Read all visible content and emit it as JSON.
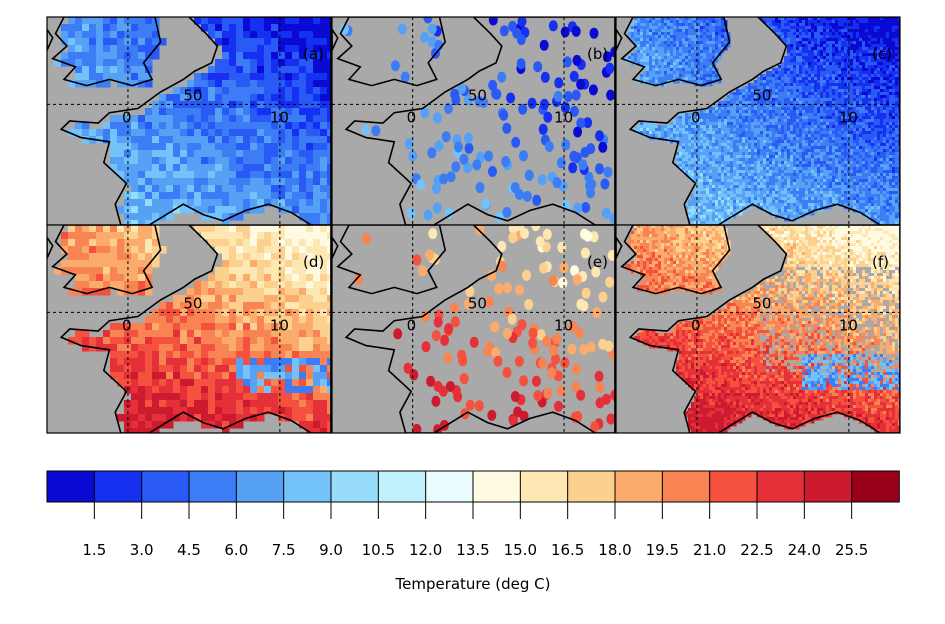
{
  "colors": {
    "land_mask": "#a9a9a9",
    "coast": "#000000",
    "scale": [
      "#0a0ad2",
      "#1530f0",
      "#2a5af5",
      "#3c7cf5",
      "#56a0f5",
      "#74c2fa",
      "#98dcfc",
      "#bff0fc",
      "#e9fbfc",
      "#fffbe2",
      "#fde8b4",
      "#fcd190",
      "#fbac6c",
      "#f78452",
      "#f4513f",
      "#e5303a",
      "#cc1a2e",
      "#9a0018"
    ]
  },
  "panels": [
    {
      "label": "(a)",
      "type": "field",
      "palette": "cold"
    },
    {
      "label": "(b)",
      "type": "stations",
      "palette": "cold"
    },
    {
      "label": "(c)",
      "type": "field_fine",
      "palette": "cold"
    },
    {
      "label": "(d)",
      "type": "field",
      "palette": "warm"
    },
    {
      "label": "(e)",
      "type": "stations",
      "palette": "warm"
    },
    {
      "label": "(f)",
      "type": "field_fine",
      "palette": "warm"
    }
  ],
  "grid_labels": {
    "lon_0": "0",
    "lon_10": "10",
    "lat_50": "50"
  },
  "colorbar": {
    "title": "Temperature (deg C)",
    "ticks": [
      "1.5",
      "3.0",
      "4.5",
      "6.0",
      "7.5",
      "9.0",
      "10.5",
      "12.0",
      "13.5",
      "15.0",
      "16.5",
      "18.0",
      "19.5",
      "21.0",
      "22.5",
      "24.0",
      "25.5"
    ]
  }
}
